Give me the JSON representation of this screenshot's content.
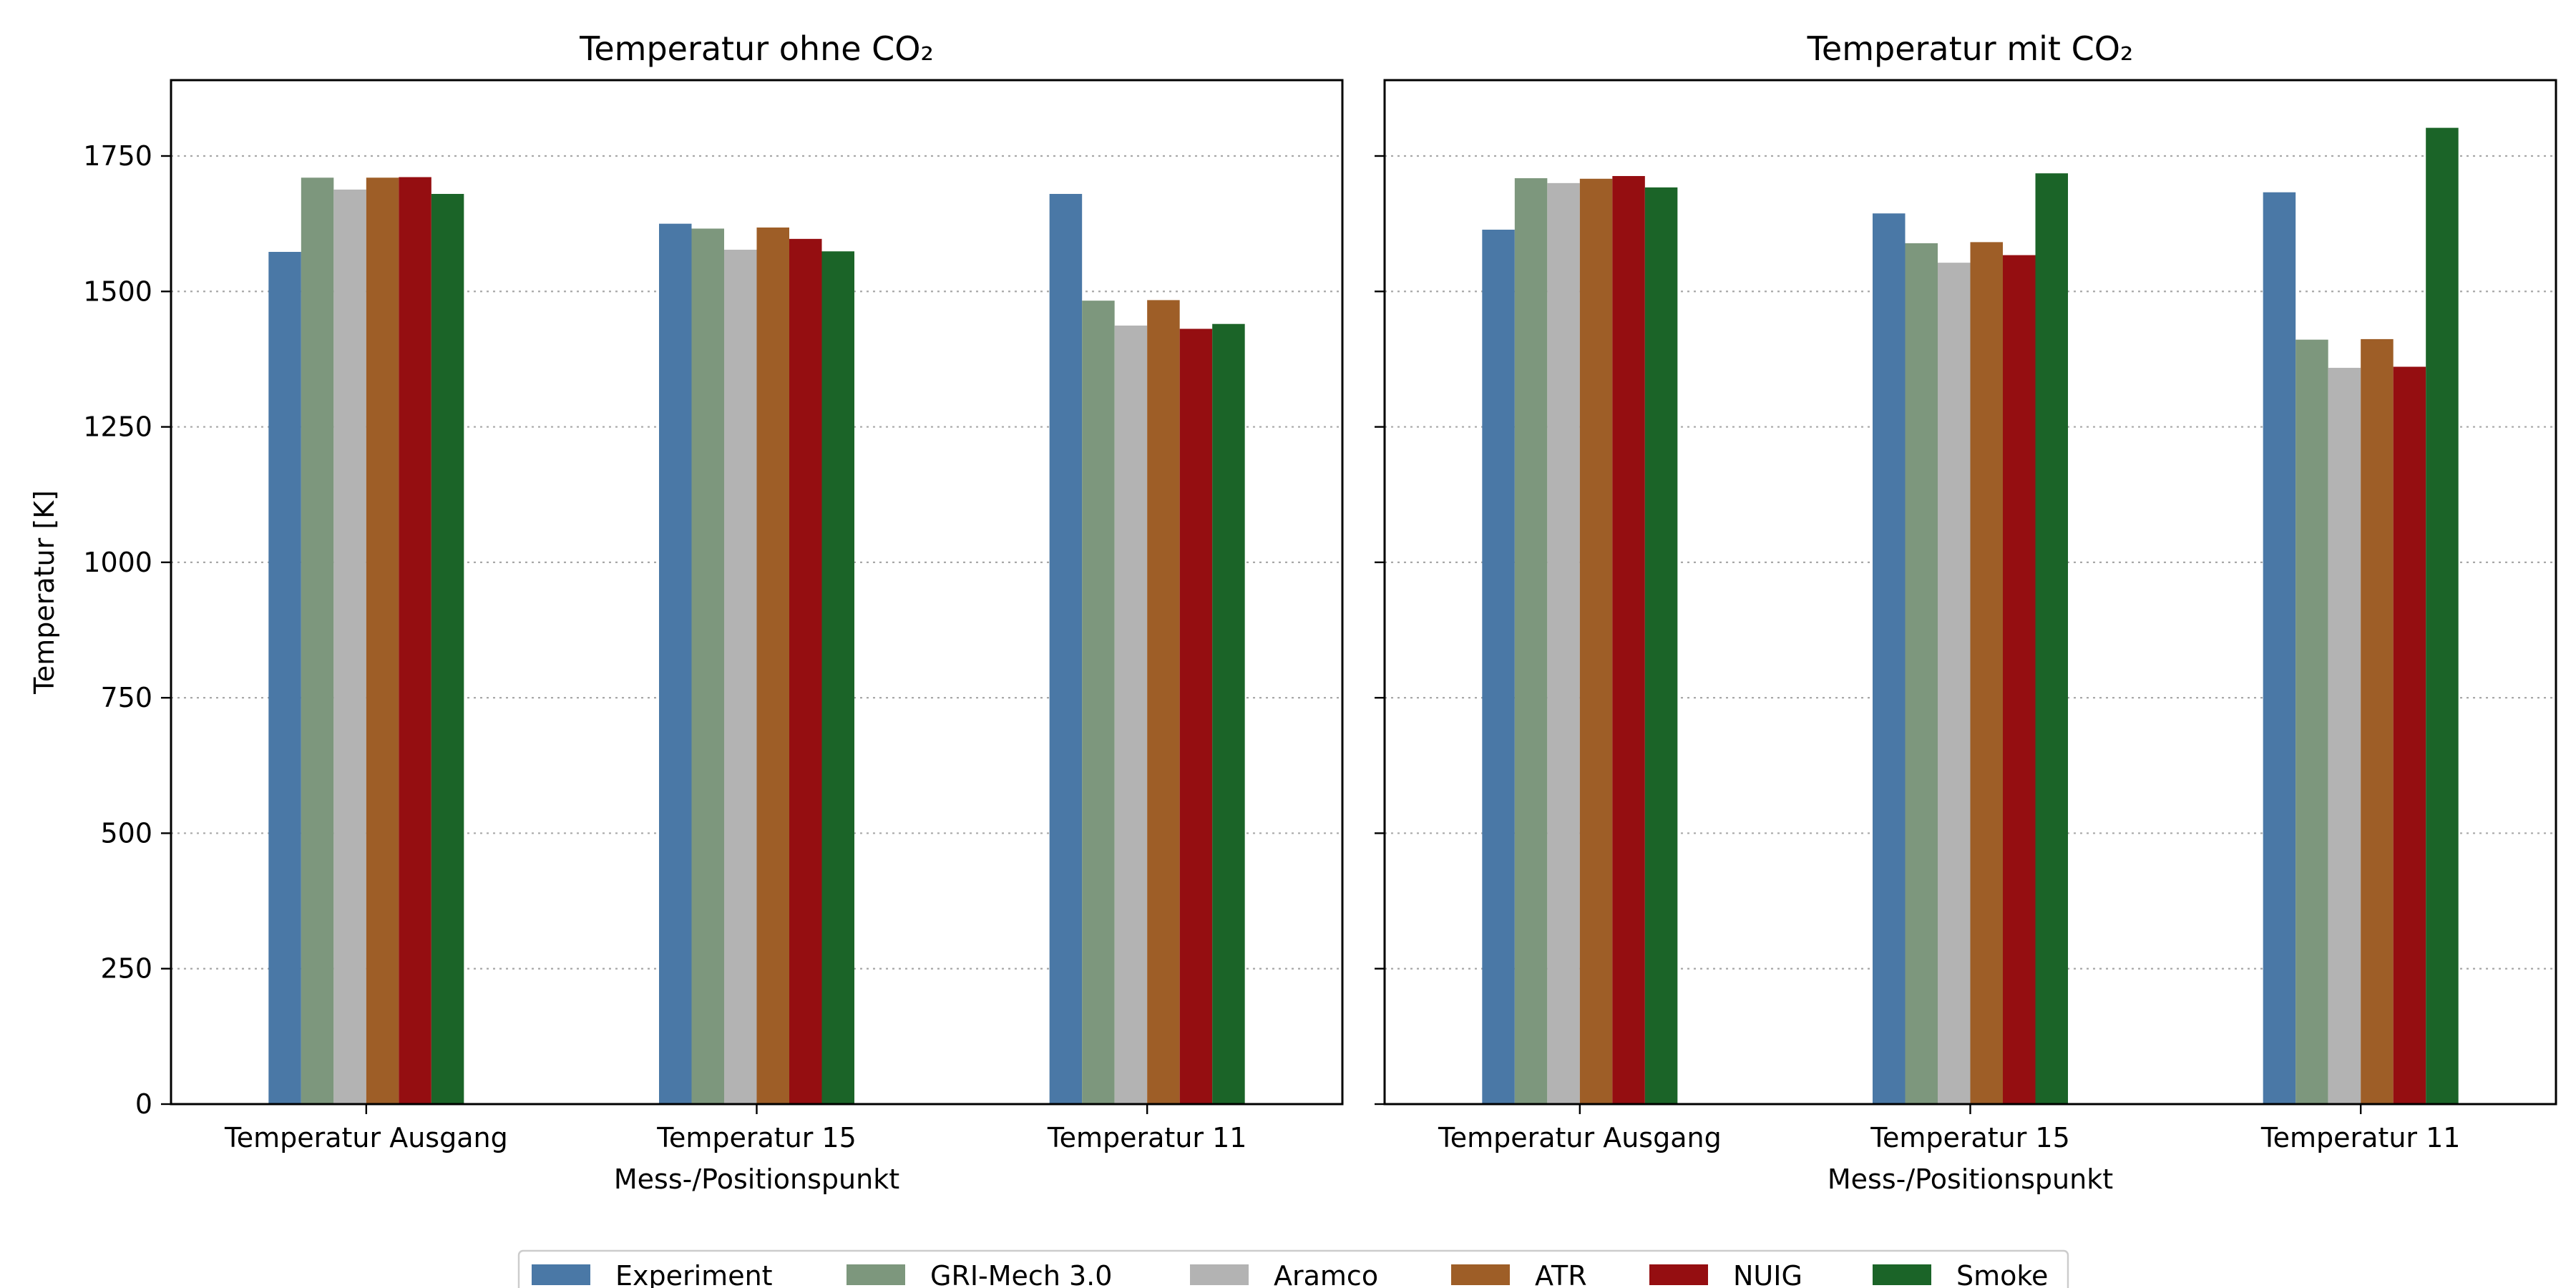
{
  "chart_data": {
    "type": "bar",
    "y_range": [
      0,
      1890
    ],
    "y_ticks": [
      0,
      250,
      500,
      750,
      1000,
      1250,
      1500,
      1750
    ],
    "grid": "horizontal dotted",
    "legend_position": "bottom-center",
    "legend": [
      {
        "name": "Experiment",
        "color": "#4a78a6"
      },
      {
        "name": "GRI-Mech 3.0",
        "color": "#7d977d"
      },
      {
        "name": "Aramco",
        "color": "#b3b3b3"
      },
      {
        "name": "ATR",
        "color": "#9e5e27"
      },
      {
        "name": "NUIG",
        "color": "#950e11"
      },
      {
        "name": "Smoke",
        "color": "#1b6428"
      }
    ],
    "panels": [
      {
        "title": "Temperatur ohne CO₂",
        "xlabel": "Mess-/Positionspunkt",
        "ylabel": "Temperatur [K]",
        "categories": [
          "Temperatur Ausgang",
          "Temperatur 15",
          "Temperatur 11"
        ],
        "series": [
          {
            "name": "Experiment",
            "values": [
              1573,
              1625,
              1680
            ]
          },
          {
            "name": "GRI-Mech 3.0",
            "values": [
              1710,
              1616,
              1483
            ]
          },
          {
            "name": "Aramco",
            "values": [
              1688,
              1577,
              1437
            ]
          },
          {
            "name": "ATR",
            "values": [
              1710,
              1618,
              1484
            ]
          },
          {
            "name": "NUIG",
            "values": [
              1711,
              1597,
              1431
            ]
          },
          {
            "name": "Smoke",
            "values": [
              1680,
              1574,
              1440
            ]
          }
        ]
      },
      {
        "title": "Temperatur mit CO₂",
        "xlabel": "Mess-/Positionspunkt",
        "ylabel": "",
        "categories": [
          "Temperatur Ausgang",
          "Temperatur 15",
          "Temperatur 11"
        ],
        "series": [
          {
            "name": "Experiment",
            "values": [
              1614,
              1644,
              1683
            ]
          },
          {
            "name": "GRI-Mech 3.0",
            "values": [
              1709,
              1589,
              1411
            ]
          },
          {
            "name": "Aramco",
            "values": [
              1700,
              1553,
              1359
            ]
          },
          {
            "name": "ATR",
            "values": [
              1708,
              1591,
              1412
            ]
          },
          {
            "name": "NUIG",
            "values": [
              1713,
              1567,
              1361
            ]
          },
          {
            "name": "Smoke",
            "values": [
              1692,
              1718,
              1802
            ]
          }
        ]
      }
    ]
  }
}
